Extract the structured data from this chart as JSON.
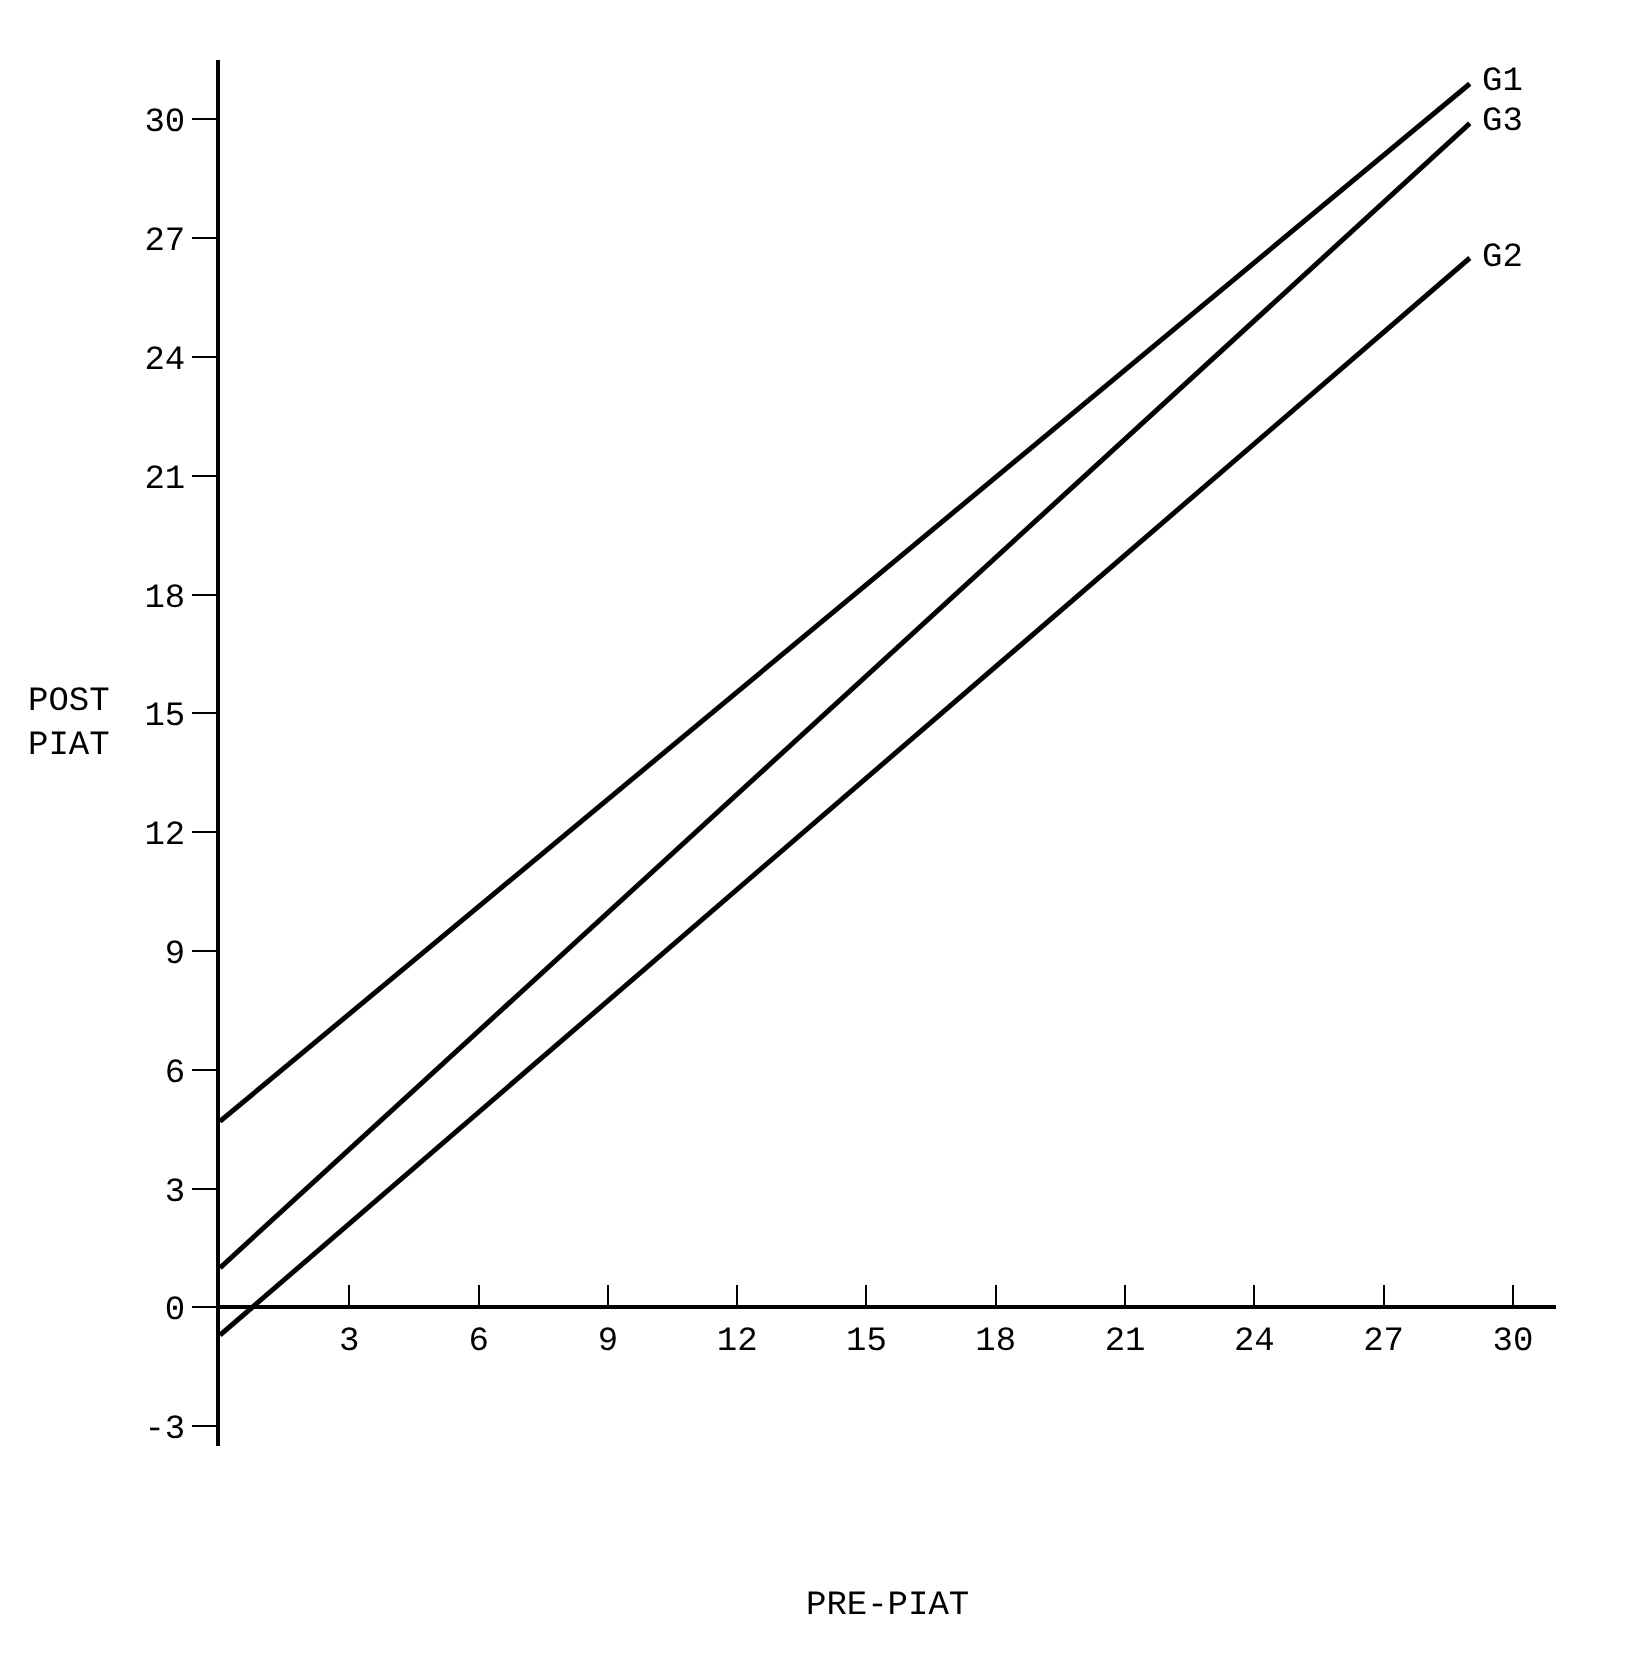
{
  "chart_data": {
    "type": "line",
    "xlabel": "PRE-PIAT",
    "ylabel": "POST\nPIAT",
    "x": [
      0,
      29
    ],
    "series": [
      {
        "name": "G1",
        "color": "#000000",
        "values": [
          4.7,
          30.9
        ]
      },
      {
        "name": "G3",
        "color": "#000000",
        "values": [
          1.0,
          29.9
        ]
      },
      {
        "name": "G2",
        "color": "#000000",
        "values": [
          -0.7,
          26.5
        ]
      }
    ],
    "xlim": [
      0,
      31
    ],
    "xticks": [
      3,
      6,
      9,
      12,
      15,
      18,
      21,
      24,
      27,
      30
    ],
    "ylim": [
      -3.5,
      31.5
    ],
    "yticks": [
      -3,
      0,
      3,
      6,
      9,
      12,
      15,
      18,
      21,
      24,
      27,
      30
    ],
    "legend": false,
    "marker": "none",
    "line_style": "solid"
  }
}
